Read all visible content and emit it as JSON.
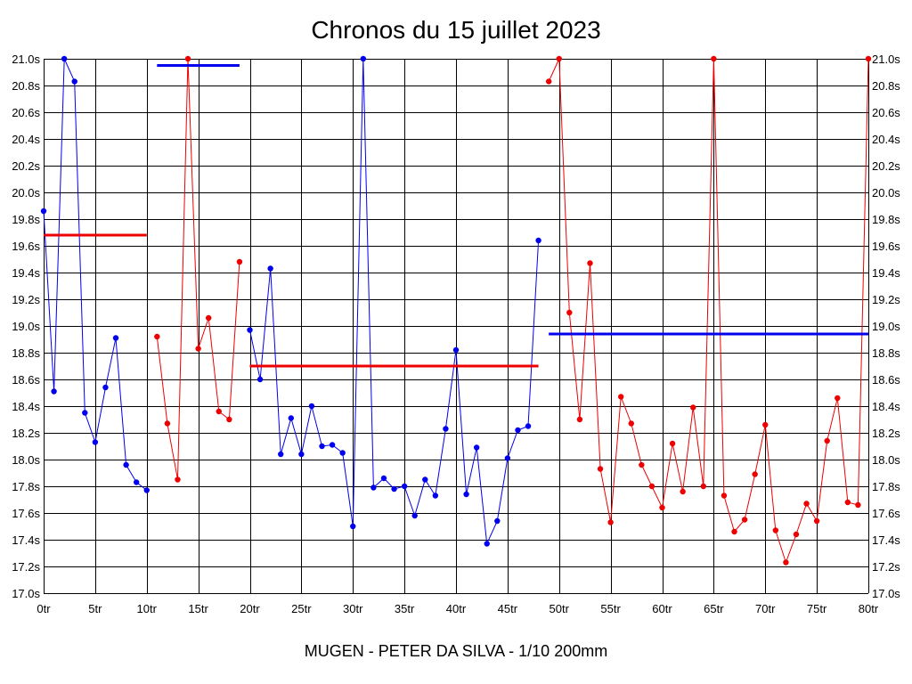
{
  "title": "Chronos du 15 juillet 2023",
  "footer": "MUGEN - PETER DA SILVA - 1/10 200mm",
  "colors": {
    "blue": "#0000ee",
    "red": "#ee0000",
    "grid": "#000000"
  },
  "chart_data": {
    "type": "line",
    "title": "Chronos du 15 juillet 2023",
    "xlabel": "",
    "ylabel": "",
    "xlim": [
      0,
      80
    ],
    "ylim": [
      17.0,
      21.0
    ],
    "grid": true,
    "x_ticks": [
      "0tr",
      "5tr",
      "10tr",
      "15tr",
      "20tr",
      "25tr",
      "30tr",
      "35tr",
      "40tr",
      "45tr",
      "50tr",
      "55tr",
      "60tr",
      "65tr",
      "70tr",
      "75tr",
      "80tr"
    ],
    "y_ticks": [
      "17.0s",
      "17.2s",
      "17.4s",
      "17.6s",
      "17.8s",
      "18.0s",
      "18.2s",
      "18.4s",
      "18.6s",
      "18.8s",
      "19.0s",
      "19.2s",
      "19.4s",
      "19.6s",
      "19.8s",
      "20.0s",
      "20.2s",
      "20.4s",
      "20.6s",
      "20.8s",
      "21.0s"
    ],
    "series": [
      {
        "color": "blue",
        "x": [
          0,
          1,
          2,
          3,
          4,
          5,
          6,
          7,
          8,
          9,
          10
        ],
        "y": [
          19.86,
          18.51,
          21.0,
          20.83,
          18.35,
          18.13,
          18.54,
          18.91,
          17.96,
          17.83,
          17.77
        ],
        "average": 19.68,
        "average_color": "red",
        "average_range": [
          0,
          10
        ]
      },
      {
        "color": "red",
        "x": [
          11,
          12,
          13,
          14,
          15,
          16,
          17,
          18,
          19
        ],
        "y": [
          18.92,
          18.27,
          17.85,
          21.0,
          18.83,
          19.06,
          18.36,
          18.3,
          19.48
        ],
        "average": 20.95,
        "average_color": "blue",
        "average_range": [
          11,
          19
        ]
      },
      {
        "color": "blue",
        "x": [
          20,
          21,
          22,
          23,
          24,
          25,
          26,
          27,
          28,
          29,
          30,
          31,
          32,
          33,
          34,
          35,
          36,
          37,
          38,
          39,
          40,
          41,
          42,
          43,
          44,
          45,
          46,
          47,
          48
        ],
        "y": [
          18.97,
          18.6,
          19.43,
          18.04,
          18.31,
          18.04,
          18.4,
          18.1,
          18.11,
          18.05,
          17.5,
          21.0,
          17.79,
          17.86,
          17.78,
          17.8,
          17.58,
          17.85,
          17.73,
          18.23,
          18.82,
          17.74,
          18.09,
          17.37,
          17.54,
          18.01,
          18.22,
          18.25,
          19.64
        ],
        "average": 18.7,
        "average_color": "red",
        "average_range": [
          20,
          48
        ]
      },
      {
        "color": "red",
        "x": [
          49,
          50,
          51,
          52,
          53,
          54,
          55,
          56,
          57,
          58,
          59,
          60,
          61,
          62,
          63,
          64,
          65,
          66,
          67,
          68,
          69,
          70,
          71,
          72,
          73,
          74,
          75,
          76,
          77,
          78,
          79,
          80
        ],
        "y": [
          20.83,
          21.0,
          19.1,
          18.3,
          19.47,
          17.93,
          17.53,
          18.47,
          18.27,
          17.96,
          17.8,
          17.64,
          18.12,
          17.76,
          18.39,
          17.8,
          21.0,
          17.73,
          17.46,
          17.55,
          17.89,
          18.26,
          17.47,
          17.23,
          17.44,
          17.67,
          17.54,
          18.14,
          18.46,
          17.68,
          17.66,
          21.0
        ],
        "average": 18.94,
        "average_color": "blue",
        "average_range": [
          49,
          80
        ]
      }
    ]
  }
}
